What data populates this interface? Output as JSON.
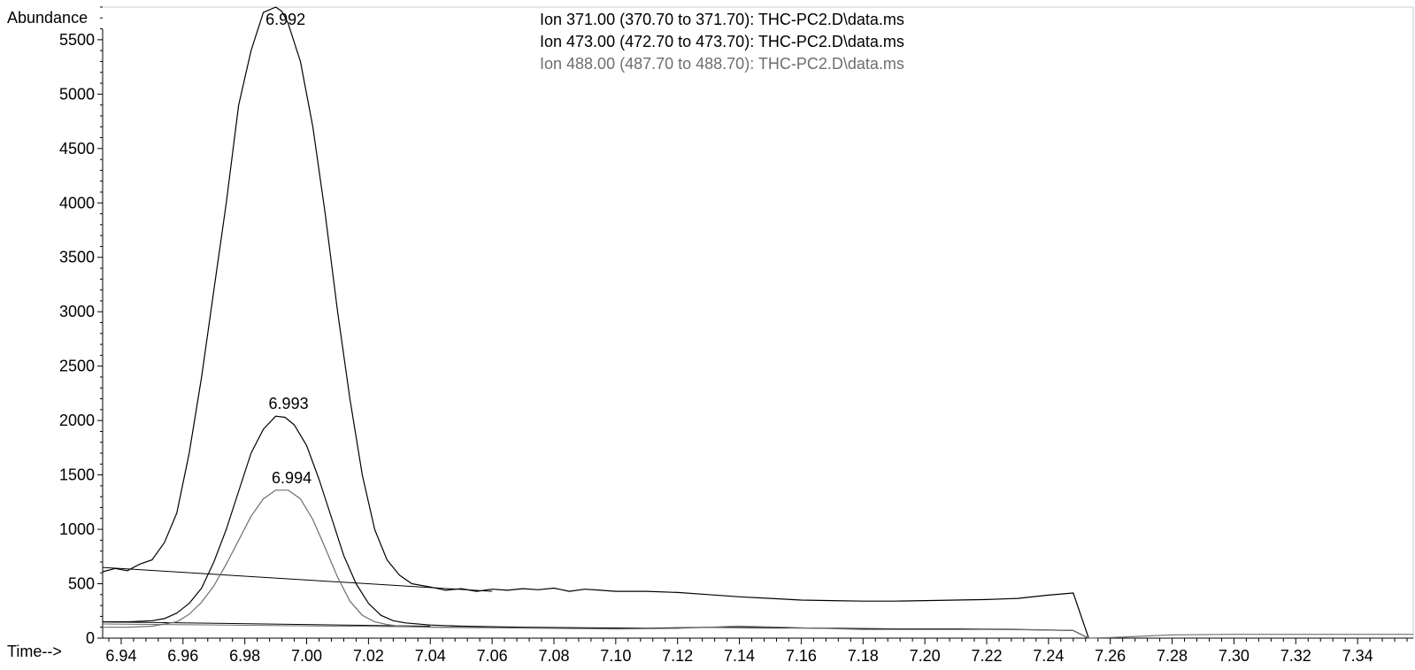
{
  "chart_data": {
    "type": "line",
    "title": "",
    "xlabel": "Time-->",
    "ylabel": "Abundance",
    "xlim": [
      6.934,
      7.358
    ],
    "ylim": [
      0,
      5800
    ],
    "x_ticks": [
      "6.94",
      "6.96",
      "6.98",
      "7.00",
      "7.02",
      "7.04",
      "7.06",
      "7.08",
      "7.10",
      "7.12",
      "7.14",
      "7.16",
      "7.18",
      "7.20",
      "7.22",
      "7.24",
      "7.26",
      "7.28",
      "7.30",
      "7.32",
      "7.34"
    ],
    "y_ticks": [
      "0",
      "500",
      "1000",
      "1500",
      "2000",
      "2500",
      "3000",
      "3500",
      "4000",
      "4500",
      "5000",
      "5500"
    ],
    "grid": false,
    "legend_position": "top-center",
    "series": [
      {
        "name": "Ion 371.00 (370.70 to 371.70): THC-PC2.D\\data.ms",
        "color": "#000000",
        "x": [
          6.934,
          6.938,
          6.942,
          6.946,
          6.95,
          6.954,
          6.958,
          6.962,
          6.966,
          6.97,
          6.974,
          6.978,
          6.982,
          6.986,
          6.99,
          6.992,
          6.994,
          6.998,
          7.002,
          7.006,
          7.01,
          7.014,
          7.018,
          7.022,
          7.026,
          7.03,
          7.034,
          7.04,
          7.045,
          7.05,
          7.055,
          7.06,
          7.065,
          7.07,
          7.075,
          7.08,
          7.085,
          7.09,
          7.095,
          7.1,
          7.11,
          7.12,
          7.13,
          7.14,
          7.15,
          7.16,
          7.17,
          7.18,
          7.19,
          7.2,
          7.21,
          7.22,
          7.23,
          7.24,
          7.248,
          7.253
        ],
        "y": [
          610,
          640,
          620,
          680,
          720,
          880,
          1150,
          1700,
          2400,
          3200,
          4000,
          4900,
          5400,
          5750,
          5800,
          5760,
          5650,
          5300,
          4700,
          3900,
          3000,
          2200,
          1500,
          1000,
          720,
          580,
          500,
          470,
          440,
          455,
          430,
          450,
          440,
          455,
          445,
          460,
          430,
          450,
          440,
          430,
          430,
          420,
          400,
          380,
          365,
          350,
          345,
          340,
          340,
          345,
          350,
          355,
          365,
          395,
          415,
          0
        ],
        "baseline": {
          "x": [
            6.934,
            7.06
          ],
          "y": [
            650,
            430
          ]
        },
        "peak_label": {
          "text": "6.992",
          "x": 6.992,
          "y": 5800
        }
      },
      {
        "name": "Ion 473.00 (472.70 to 473.70): THC-PC2.D\\data.ms",
        "color": "#000000",
        "x": [
          6.934,
          6.942,
          6.95,
          6.954,
          6.958,
          6.962,
          6.966,
          6.97,
          6.974,
          6.978,
          6.982,
          6.986,
          6.99,
          6.993,
          6.996,
          7.0,
          7.004,
          7.008,
          7.012,
          7.016,
          7.02,
          7.024,
          7.028,
          7.032,
          7.04,
          7.05,
          7.07,
          7.09,
          7.11,
          7.13,
          7.15,
          7.17,
          7.19,
          7.21,
          7.23,
          7.248,
          7.253
        ],
        "y": [
          150,
          150,
          160,
          180,
          230,
          320,
          460,
          700,
          1000,
          1350,
          1700,
          1920,
          2040,
          2030,
          1960,
          1770,
          1460,
          1110,
          760,
          500,
          320,
          210,
          160,
          140,
          120,
          110,
          100,
          95,
          90,
          100,
          95,
          90,
          85,
          85,
          80,
          70,
          0
        ],
        "baseline": {
          "x": [
            6.934,
            7.04
          ],
          "y": [
            150,
            110
          ]
        },
        "peak_label": {
          "text": "6.993",
          "x": 6.993,
          "y": 2040
        }
      },
      {
        "name": "Ion 488.00 (487.70 to 488.70): THC-PC2.D\\data.ms",
        "color": "#6e6e6e",
        "x": [
          6.934,
          6.942,
          6.95,
          6.958,
          6.962,
          6.966,
          6.97,
          6.974,
          6.978,
          6.982,
          6.986,
          6.99,
          6.994,
          6.998,
          7.002,
          7.006,
          7.01,
          7.014,
          7.018,
          7.022,
          7.026,
          7.03,
          7.04,
          7.06,
          7.08,
          7.1,
          7.12,
          7.14,
          7.16,
          7.18,
          7.2,
          7.22,
          7.24,
          7.248,
          7.253,
          7.26,
          7.28,
          7.3,
          7.32,
          7.34,
          7.358
        ],
        "y": [
          100,
          100,
          110,
          150,
          220,
          330,
          480,
          680,
          900,
          1120,
          1280,
          1360,
          1360,
          1280,
          1090,
          830,
          560,
          340,
          210,
          150,
          125,
          110,
          100,
          95,
          90,
          85,
          90,
          110,
          95,
          80,
          80,
          80,
          75,
          70,
          0,
          5,
          30,
          35,
          35,
          35,
          35
        ],
        "baseline": {
          "x": [
            6.934,
            7.05
          ],
          "y": [
            130,
            100
          ]
        },
        "peak_label": {
          "text": "6.994",
          "x": 6.994,
          "y": 1360
        }
      }
    ]
  }
}
